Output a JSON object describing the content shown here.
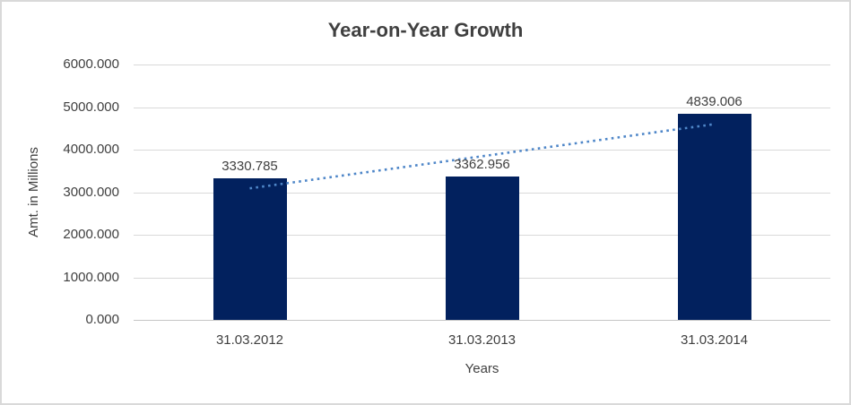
{
  "chart": {
    "title": "Year-on-Year Growth"
  },
  "chart_data": {
    "type": "bar",
    "title": "Year-on-Year Growth",
    "xlabel": "Years",
    "ylabel": "Amt. in Millions",
    "categories": [
      "31.03.2012",
      "31.03.2013",
      "31.03.2014"
    ],
    "values": [
      3330.785,
      3362.956,
      4839.006
    ],
    "data_labels": [
      "3330.785",
      "3362.956",
      "4839.006"
    ],
    "ylim": [
      0,
      6000
    ],
    "ytick_values": [
      0,
      1000,
      2000,
      3000,
      4000,
      5000,
      6000
    ],
    "ytick_labels": [
      "0.000",
      "1000.000",
      "2000.000",
      "3000.000",
      "4000.000",
      "5000.000",
      "6000.000"
    ],
    "grid": true,
    "legend": "none",
    "trendline": {
      "type": "linear",
      "style": "dotted"
    },
    "colors": {
      "bar": "#02215e",
      "trendline": "#4e86c8",
      "gridline": "#d9d9d9",
      "axis_line": "#c6c6c6",
      "text": "#404040",
      "border": "#d9d9d9"
    }
  }
}
